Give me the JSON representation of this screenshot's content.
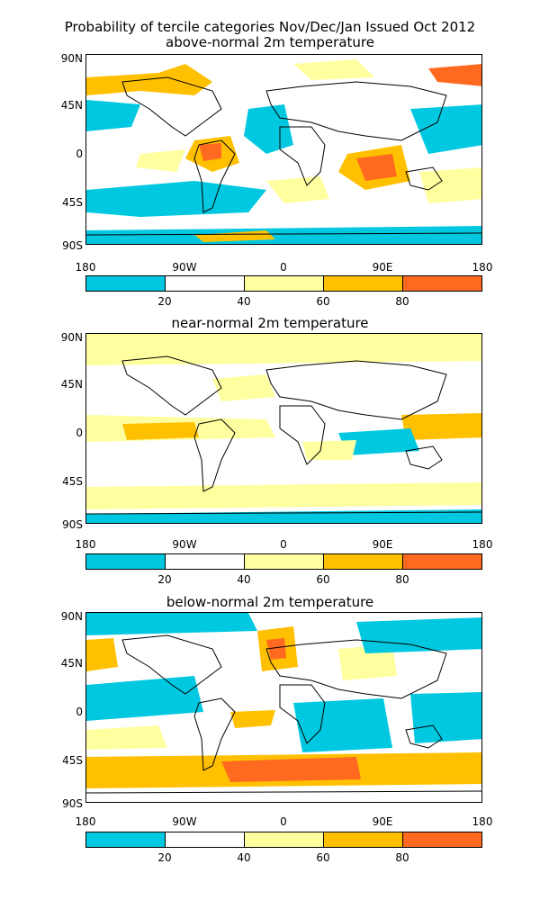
{
  "title_line1": "Probability of tercile categories Nov/Dec/Jan Issued Oct 2012",
  "title_line2": "above-normal 2m temperature",
  "panels": [
    {
      "title": "above-normal 2m temperature"
    },
    {
      "title": "near-normal 2m temperature"
    },
    {
      "title": "below-normal 2m temperature"
    }
  ],
  "lat_labels": [
    "90N",
    "45N",
    "0",
    "45S",
    "90S"
  ],
  "lon_labels": [
    "180",
    "90W",
    "0",
    "90E",
    "180"
  ],
  "colorbar": {
    "colors": [
      "#00c8e0",
      "#ffffff",
      "#ffffa0",
      "#ffc000",
      "#ff6a20"
    ],
    "labels": [
      "20",
      "40",
      "60",
      "80"
    ]
  }
}
